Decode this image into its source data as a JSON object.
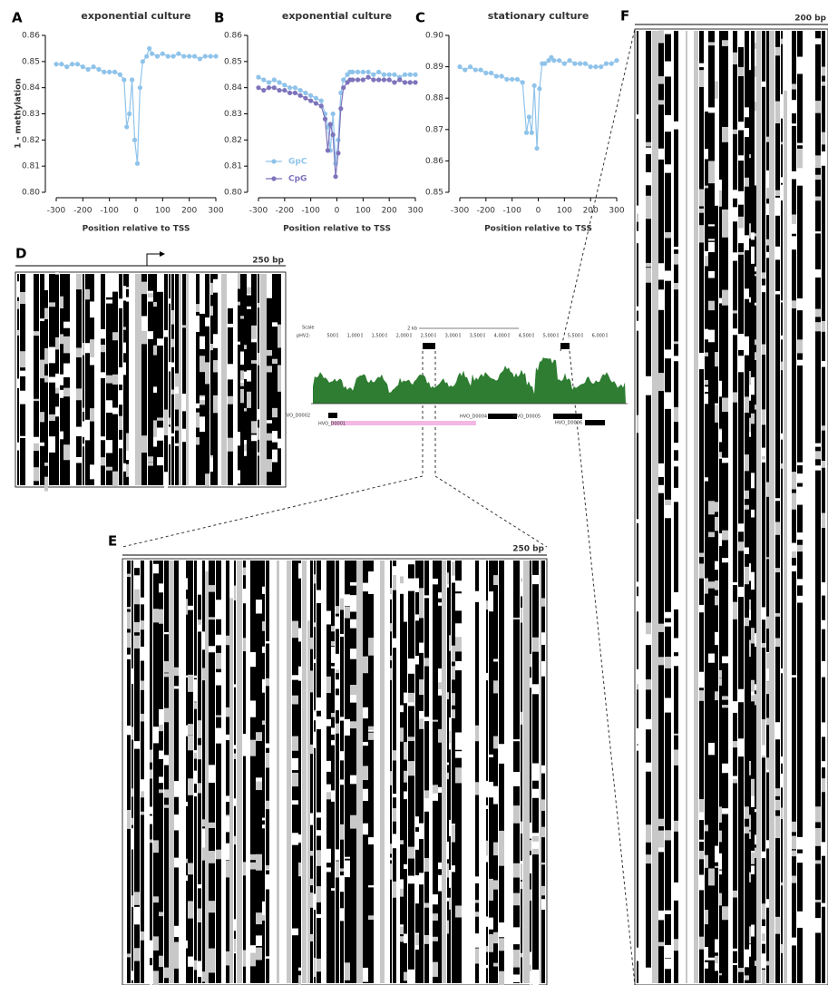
{
  "chart_data": [
    {
      "type": "line",
      "label": "A",
      "title": "exponential culture",
      "ylabel": "1 - methylation",
      "xlabel": "Position relative to TSS",
      "xlim": [
        -300,
        300
      ],
      "xticks": [
        -300,
        -200,
        -100,
        0,
        100,
        200,
        300
      ],
      "ylim": [
        0.8,
        0.86
      ],
      "yticks": [
        {
          "value": 0.8,
          "label": "0.80"
        },
        0.81,
        0.82,
        0.83,
        0.84,
        0.85,
        0.86
      ],
      "x": [
        -300,
        -280,
        -260,
        -240,
        -220,
        -200,
        -180,
        -160,
        -140,
        -120,
        -100,
        -80,
        -60,
        -45,
        -35,
        -25,
        -15,
        -5,
        5,
        15,
        25,
        40,
        50,
        60,
        80,
        100,
        120,
        140,
        160,
        180,
        200,
        220,
        240,
        260,
        280,
        300
      ],
      "color": "#8fc3ea",
      "values": [
        0.849,
        0.849,
        0.848,
        0.849,
        0.849,
        0.848,
        0.847,
        0.848,
        0.847,
        0.846,
        0.846,
        0.846,
        0.845,
        0.843,
        0.825,
        0.83,
        0.843,
        0.82,
        0.811,
        0.84,
        0.85,
        0.852,
        0.855,
        0.853,
        0.852,
        0.853,
        0.852,
        0.852,
        0.853,
        0.852,
        0.852,
        0.852,
        0.851,
        0.852,
        0.852,
        0.852
      ]
    },
    {
      "type": "line",
      "label": "B",
      "title": "exponential culture",
      "xlabel": "Position relative to TSS",
      "xlim": [
        -300,
        300
      ],
      "xticks": [
        -300,
        -200,
        -100,
        0,
        100,
        200,
        300
      ],
      "ylim": [
        0.8,
        0.86
      ],
      "yticks": [
        {
          "value": 0.8,
          "label": "0.80"
        },
        0.81,
        0.82,
        0.83,
        0.84,
        0.85,
        0.86
      ],
      "x": [
        -300,
        -280,
        -260,
        -240,
        -220,
        -200,
        -180,
        -160,
        -140,
        -120,
        -100,
        -80,
        -60,
        -45,
        -35,
        -25,
        -15,
        -5,
        5,
        15,
        25,
        40,
        50,
        60,
        80,
        100,
        120,
        140,
        160,
        180,
        200,
        220,
        240,
        260,
        280,
        300
      ],
      "series": [
        {
          "name": "GpC",
          "color": "#8fc3ea",
          "values": [
            0.844,
            0.843,
            0.842,
            0.843,
            0.842,
            0.841,
            0.84,
            0.84,
            0.839,
            0.838,
            0.837,
            0.836,
            0.835,
            0.83,
            0.825,
            0.816,
            0.83,
            0.811,
            0.82,
            0.838,
            0.843,
            0.845,
            0.846,
            0.846,
            0.846,
            0.846,
            0.846,
            0.845,
            0.846,
            0.845,
            0.845,
            0.845,
            0.844,
            0.845,
            0.845,
            0.845
          ]
        },
        {
          "name": "CpG",
          "color": "#7d74bb",
          "values": [
            0.84,
            0.839,
            0.84,
            0.84,
            0.839,
            0.839,
            0.838,
            0.838,
            0.837,
            0.836,
            0.835,
            0.834,
            0.833,
            0.828,
            0.816,
            0.826,
            0.822,
            0.806,
            0.815,
            0.832,
            0.84,
            0.842,
            0.843,
            0.843,
            0.843,
            0.843,
            0.844,
            0.843,
            0.843,
            0.843,
            0.843,
            0.842,
            0.843,
            0.842,
            0.842,
            0.842
          ]
        }
      ],
      "legend": "lower left"
    },
    {
      "type": "line",
      "label": "C",
      "title": "stationary culture",
      "xlabel": "Position relative to TSS",
      "xlim": [
        -300,
        300
      ],
      "xticks": [
        -300,
        -200,
        -100,
        0,
        100,
        200,
        300
      ],
      "ylim": [
        0.85,
        0.9
      ],
      "yticks": [
        0.85,
        0.86,
        0.87,
        0.88,
        0.89,
        {
          "value": 0.9,
          "label": "0.90"
        }
      ],
      "x": [
        -300,
        -280,
        -260,
        -240,
        -220,
        -200,
        -180,
        -160,
        -140,
        -120,
        -100,
        -80,
        -60,
        -45,
        -35,
        -25,
        -15,
        -5,
        5,
        15,
        25,
        40,
        50,
        60,
        80,
        100,
        120,
        140,
        160,
        180,
        200,
        220,
        240,
        260,
        280,
        300
      ],
      "color": "#8fc3ea",
      "values": [
        0.89,
        0.889,
        0.89,
        0.889,
        0.889,
        0.888,
        0.888,
        0.887,
        0.887,
        0.886,
        0.886,
        0.886,
        0.885,
        0.869,
        0.874,
        0.869,
        0.884,
        0.864,
        0.883,
        0.891,
        0.891,
        0.892,
        0.893,
        0.892,
        0.892,
        0.891,
        0.892,
        0.891,
        0.891,
        0.891,
        0.89,
        0.89,
        0.89,
        0.891,
        0.891,
        0.892
      ]
    }
  ],
  "panels": {
    "D": {
      "label": "D",
      "scale": "250 bp"
    },
    "E": {
      "label": "E",
      "scale": "250 bp"
    },
    "F": {
      "label": "F",
      "scale": "200 bp"
    }
  },
  "browser": {
    "scale": "Scale",
    "chrom": "pHV2:",
    "bar": "2 kb",
    "ticks": [
      "500",
      "1,000",
      "1,500",
      "2,000",
      "2,500",
      "3,000",
      "3,500",
      "4,000",
      "4,500",
      "5,000",
      "5,500",
      "6,000"
    ],
    "genes": [
      "HVO_D0002",
      "HVO_D0001",
      "HVO_D0004",
      "HVO_D0005",
      "HVO_D0006"
    ]
  }
}
